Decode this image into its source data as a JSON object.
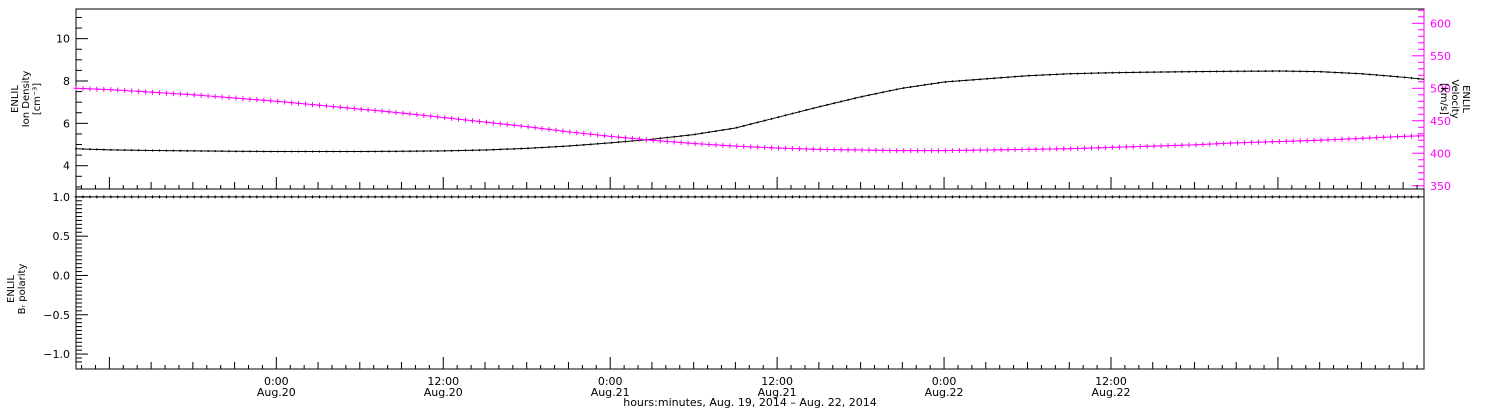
{
  "chart_data": [
    {
      "type": "line",
      "panel": "top",
      "ylabel_left_lines": [
        "ENLIL",
        "Ion Density",
        "[cm⁻³]"
      ],
      "ylabel_right_lines": [
        "ENLIL",
        "Velocity",
        "[km/s]"
      ],
      "y_left_ticks": [
        4,
        6,
        8,
        10
      ],
      "y_left_range": [
        2.9,
        11.4
      ],
      "y_right_ticks": [
        350,
        400,
        450,
        500,
        550,
        600
      ],
      "y_right_range": [
        345,
        622
      ],
      "right_axis_color": "#ff00ff",
      "series": [
        {
          "axis": "left",
          "color": "#000000",
          "x_hours": [
            -14.4,
            -12,
            -9,
            -6,
            -3,
            0,
            3,
            6,
            9,
            12,
            15,
            18,
            21,
            24,
            27,
            30,
            33,
            36,
            39,
            42,
            45,
            48,
            51,
            54,
            57,
            60,
            63,
            66,
            69,
            72,
            75,
            78,
            81,
            82.5
          ],
          "values": [
            4.8,
            4.75,
            4.72,
            4.7,
            4.68,
            4.67,
            4.67,
            4.67,
            4.68,
            4.7,
            4.74,
            4.82,
            4.93,
            5.08,
            5.25,
            5.47,
            5.78,
            6.28,
            6.78,
            7.25,
            7.66,
            7.95,
            8.1,
            8.25,
            8.34,
            8.39,
            8.42,
            8.44,
            8.46,
            8.47,
            8.44,
            8.34,
            8.18,
            8.08
          ]
        },
        {
          "axis": "right",
          "color": "#ff00ff",
          "x_hours": [
            -14.4,
            -12,
            -9,
            -6,
            -3,
            0,
            3,
            6,
            9,
            12,
            15,
            18,
            21,
            24,
            27,
            30,
            33,
            36,
            39,
            42,
            45,
            48,
            51,
            54,
            57,
            60,
            63,
            66,
            69,
            72,
            75,
            78,
            81,
            82.5
          ],
          "values": [
            500,
            498,
            494,
            490,
            485,
            480,
            474,
            468,
            462,
            455,
            448,
            441,
            433,
            426,
            420,
            415,
            411,
            408,
            406,
            405,
            404,
            404,
            405,
            406,
            407,
            409,
            411,
            413,
            416,
            418,
            420,
            423,
            426,
            427
          ]
        }
      ]
    },
    {
      "type": "line",
      "panel": "bottom",
      "ylabel_left_lines": [
        "ENLIL",
        "Bᵣ polarity"
      ],
      "y_ticks": [
        -1.0,
        -0.5,
        0.0,
        0.5,
        1.0
      ],
      "y_tick_labels": [
        "−1.0",
        "−0.5",
        "0.0",
        "0.5",
        "1.0"
      ],
      "y_range": [
        -1.19,
        1.1
      ],
      "series": [
        {
          "color": "#000000",
          "x_hours": [
            -14.4,
            82.5
          ],
          "values": [
            1.0,
            1.0
          ]
        }
      ]
    }
  ],
  "x_axis": {
    "range_hours_from_aug20_0000": [
      -14.4,
      82.5
    ],
    "ticks_hours": [
      0,
      12,
      24,
      36,
      48,
      60
    ],
    "tick_labels_time": [
      "0:00",
      "12:00",
      "0:00",
      "12:00",
      "0:00",
      "12:00"
    ],
    "tick_labels_date": [
      "Aug.20",
      "Aug.20",
      "Aug.21",
      "Aug.21",
      "Aug.22",
      "Aug.22"
    ],
    "title": "hours:minutes, Aug. 19, 2014 – Aug. 22, 2014"
  }
}
